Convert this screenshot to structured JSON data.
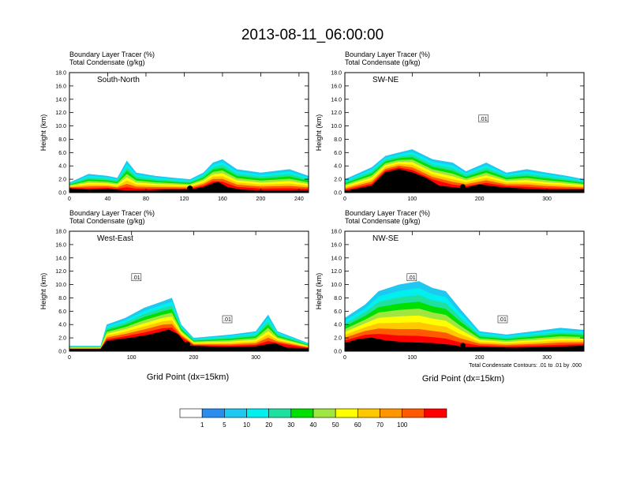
{
  "title": "2013-08-11_06:00:00",
  "panel_header_line1": "Boundary Layer Tracer   (%)",
  "panel_header_line2": "Total Condensate   (g/kg)",
  "y_axis_label": "Height (km)",
  "x_axis_label": "Grid Point (dx=15km)",
  "contour_note": "Total Condensate Contours: .01 to .01 by .000",
  "colorbar": {
    "labels": [
      "1",
      "5",
      "10",
      "20",
      "30",
      "40",
      "50",
      "60",
      "70",
      "100"
    ],
    "colors": [
      "#ffffff",
      "#2b8cf0",
      "#1ec8f0",
      "#00f0f0",
      "#20e0a0",
      "#00e000",
      "#a0e640",
      "#ffff00",
      "#ffc800",
      "#ff9600",
      "#ff5a00",
      "#ff0000"
    ]
  },
  "chart_data": [
    {
      "type": "contour",
      "label": "South-North",
      "xlim": [
        0,
        250
      ],
      "ylim": [
        0,
        18
      ],
      "x_ticks": [
        0,
        40,
        80,
        120,
        160,
        200,
        240
      ],
      "y_ticks": [
        "0.0",
        "2.0",
        "4.0",
        "6.0",
        "8.0",
        "10.0",
        "12.0",
        "14.0",
        "16.0",
        "18.0"
      ],
      "terrain_km": [
        [
          0,
          0.6
        ],
        [
          20,
          0.4
        ],
        [
          40,
          0.5
        ],
        [
          60,
          0.3
        ],
        [
          80,
          0.3
        ],
        [
          100,
          0.4
        ],
        [
          126,
          0.4
        ],
        [
          140,
          0.8
        ],
        [
          155,
          1.6
        ],
        [
          165,
          0.8
        ],
        [
          180,
          0.4
        ],
        [
          200,
          0.3
        ],
        [
          240,
          0.3
        ],
        [
          250,
          0.3
        ]
      ],
      "tracer_top_km": [
        [
          0,
          1.5
        ],
        [
          20,
          2.8
        ],
        [
          40,
          2.5
        ],
        [
          50,
          2.2
        ],
        [
          60,
          4.8
        ],
        [
          70,
          3.0
        ],
        [
          90,
          2.5
        ],
        [
          110,
          2.2
        ],
        [
          126,
          2.0
        ],
        [
          140,
          3.0
        ],
        [
          150,
          4.5
        ],
        [
          160,
          5.0
        ],
        [
          175,
          3.5
        ],
        [
          200,
          3.0
        ],
        [
          230,
          3.5
        ],
        [
          250,
          2.5
        ]
      ],
      "marker_x": 126,
      "contour_labels": []
    },
    {
      "type": "contour",
      "label": "SW-NE",
      "xlim": [
        0,
        355
      ],
      "ylim": [
        0,
        18
      ],
      "x_ticks": [
        0,
        100,
        200,
        300
      ],
      "y_ticks": [
        "0.0",
        "2.0",
        "4.0",
        "6.0",
        "8.0",
        "10.0",
        "12.0",
        "14.0",
        "16.0",
        "18.0"
      ],
      "terrain_km": [
        [
          0,
          0.2
        ],
        [
          40,
          1.0
        ],
        [
          60,
          3.0
        ],
        [
          80,
          3.5
        ],
        [
          100,
          3.0
        ],
        [
          120,
          2.2
        ],
        [
          140,
          1.0
        ],
        [
          175,
          0.6
        ],
        [
          200,
          1.2
        ],
        [
          230,
          0.8
        ],
        [
          260,
          0.6
        ],
        [
          300,
          0.4
        ],
        [
          355,
          0.4
        ]
      ],
      "tracer_top_km": [
        [
          0,
          2.0
        ],
        [
          40,
          3.8
        ],
        [
          60,
          5.5
        ],
        [
          80,
          6.0
        ],
        [
          100,
          6.5
        ],
        [
          130,
          5.0
        ],
        [
          160,
          4.5
        ],
        [
          180,
          3.2
        ],
        [
          210,
          4.5
        ],
        [
          240,
          3.0
        ],
        [
          270,
          3.5
        ],
        [
          300,
          3.0
        ],
        [
          330,
          2.5
        ],
        [
          355,
          2.0
        ]
      ],
      "marker_x": 175,
      "contour_labels": [
        ".01"
      ]
    },
    {
      "type": "contour",
      "label": "West-East",
      "xlim": [
        0,
        385
      ],
      "ylim": [
        0,
        18
      ],
      "x_ticks": [
        0,
        100,
        200,
        300
      ],
      "y_ticks": [
        "0.0",
        "2.0",
        "4.0",
        "6.0",
        "8.0",
        "10.0",
        "12.0",
        "14.0",
        "16.0",
        "18.0"
      ],
      "terrain_km": [
        [
          0,
          0.3
        ],
        [
          50,
          0.3
        ],
        [
          60,
          1.5
        ],
        [
          80,
          1.8
        ],
        [
          100,
          2.0
        ],
        [
          130,
          2.5
        ],
        [
          160,
          3.2
        ],
        [
          175,
          2.5
        ],
        [
          190,
          0.8
        ],
        [
          250,
          0.6
        ],
        [
          300,
          0.7
        ],
        [
          330,
          1.2
        ],
        [
          350,
          0.5
        ],
        [
          385,
          0.4
        ]
      ],
      "tracer_top_km": [
        [
          0,
          0.8
        ],
        [
          50,
          0.8
        ],
        [
          60,
          4.0
        ],
        [
          90,
          5.0
        ],
        [
          120,
          6.5
        ],
        [
          150,
          7.5
        ],
        [
          165,
          8.0
        ],
        [
          180,
          4.0
        ],
        [
          200,
          2.0
        ],
        [
          260,
          2.5
        ],
        [
          300,
          3.0
        ],
        [
          320,
          5.5
        ],
        [
          335,
          3.0
        ],
        [
          385,
          1.2
        ]
      ],
      "marker_x": 190,
      "contour_labels": [
        ".01",
        ".01"
      ]
    },
    {
      "type": "contour",
      "label": "NW-SE",
      "xlim": [
        0,
        355
      ],
      "ylim": [
        0,
        18
      ],
      "x_ticks": [
        0,
        100,
        200,
        300
      ],
      "y_ticks": [
        "0.0",
        "2.0",
        "4.0",
        "6.0",
        "8.0",
        "10.0",
        "12.0",
        "14.0",
        "16.0",
        "18.0"
      ],
      "terrain_km": [
        [
          0,
          1.2
        ],
        [
          20,
          1.8
        ],
        [
          40,
          2.0
        ],
        [
          60,
          1.6
        ],
        [
          80,
          1.4
        ],
        [
          100,
          1.3
        ],
        [
          130,
          1.2
        ],
        [
          160,
          0.9
        ],
        [
          175,
          0.6
        ],
        [
          200,
          0.6
        ],
        [
          250,
          0.5
        ],
        [
          300,
          0.6
        ],
        [
          355,
          0.8
        ]
      ],
      "tracer_top_km": [
        [
          0,
          5.0
        ],
        [
          30,
          7.0
        ],
        [
          50,
          9.0
        ],
        [
          80,
          10.0
        ],
        [
          110,
          10.5
        ],
        [
          130,
          9.5
        ],
        [
          150,
          9.0
        ],
        [
          170,
          6.5
        ],
        [
          200,
          3.0
        ],
        [
          240,
          2.5
        ],
        [
          280,
          3.0
        ],
        [
          320,
          3.5
        ],
        [
          355,
          3.2
        ]
      ],
      "marker_x": 175,
      "contour_labels": [
        ".01",
        ".01"
      ]
    }
  ]
}
